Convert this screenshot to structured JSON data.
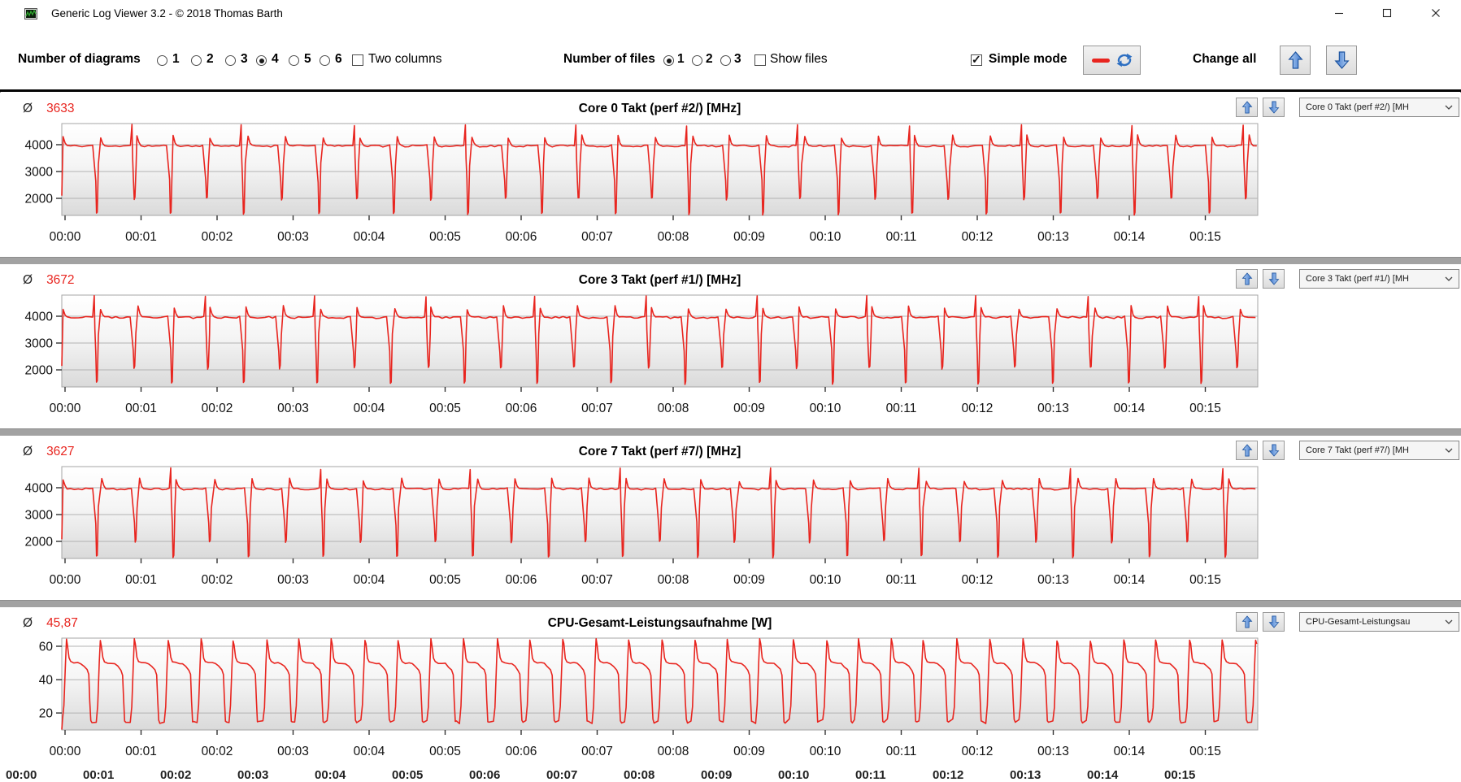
{
  "window": {
    "title": "Generic Log Viewer 3.2 - © 2018 Thomas Barth"
  },
  "toolbar": {
    "number_of_diagrams_label": "Number of diagrams",
    "diagram_count_options": [
      "1",
      "2",
      "3",
      "4",
      "5",
      "6"
    ],
    "diagram_count_selected": "4",
    "two_columns_label": "Two columns",
    "two_columns_checked": false,
    "number_of_files_label": "Number of files",
    "file_count_options": [
      "1",
      "2",
      "3"
    ],
    "file_count_selected": "1",
    "show_files_label": "Show files",
    "show_files_checked": false,
    "simple_mode_label": "Simple mode",
    "simple_mode_checked": true,
    "change_all_label": "Change all"
  },
  "chart_data": [
    {
      "type": "line",
      "title": "Core 0 Takt (perf #2/) [MHz]",
      "average_symbol": "Ø",
      "average_value": "3633",
      "dropdown_value": "Core 0 Takt (perf #2/) [MH",
      "line_color": "#e8251f",
      "x_tick_labels": [
        "00:00",
        "00:01",
        "00:02",
        "00:03",
        "00:04",
        "00:05",
        "00:06",
        "00:07",
        "00:08",
        "00:09",
        "00:10",
        "00:11",
        "00:12",
        "00:13",
        "00:14",
        "00:15"
      ],
      "y_ticks": [
        4000,
        3000,
        2000
      ],
      "y_tick_labels": [
        "4000",
        "3000",
        "2000"
      ],
      "ylim": [
        1364,
        4788
      ],
      "xlim_s": [
        0,
        944
      ],
      "waveform": {
        "seed": 11,
        "period_s": 29.4,
        "start": 2100,
        "start_dt": 1.0,
        "spike_every": 3,
        "spike_offset": 1,
        "dip_values": [
          1420,
          1975
        ],
        "segments": [
          {
            "dt": 0.0,
            "v": 4300,
            "j": 140
          },
          {
            "dt": 1.6,
            "v": 4060,
            "j": 50
          },
          {
            "dt": 3.2,
            "v": 3970,
            "j": 40
          },
          {
            "dt": 6.0,
            "v": 3950,
            "j": 70
          },
          {
            "dt": 9.0,
            "v": 3955,
            "j": 70
          },
          {
            "dt": 12.0,
            "v": 3950,
            "j": 70
          },
          {
            "dt": 15.0,
            "v": 3955,
            "j": 70
          },
          {
            "dt": 18.0,
            "v": 3950,
            "j": 70
          },
          {
            "dt": 21.0,
            "v": 3960,
            "j": 60
          },
          {
            "dt": 23.4,
            "v": 3980,
            "j": 40
          },
          {
            "dt": 24.6,
            "v": 4730,
            "j": 80,
            "spike_only": true
          },
          {
            "dt": 25.1,
            "v": 3500,
            "j": 120,
            "spike_only": true
          },
          {
            "dt": 25.8,
            "v": 2650,
            "j": 150
          },
          {
            "dt": 26.4,
            "v": 0,
            "j": 90,
            "dip_rel": true
          },
          {
            "dt": 27.0,
            "v": 70,
            "j": 60,
            "dip_rel": true
          },
          {
            "dt": 27.9,
            "v": 3250,
            "j": 150
          }
        ]
      }
    },
    {
      "type": "line",
      "title": "Core 3 Takt (perf #1/) [MHz]",
      "average_symbol": "Ø",
      "average_value": "3672",
      "dropdown_value": "Core 3 Takt (perf #1/) [MH",
      "line_color": "#e8251f",
      "x_tick_labels": [
        "00:00",
        "00:01",
        "00:02",
        "00:03",
        "00:04",
        "00:05",
        "00:06",
        "00:07",
        "00:08",
        "00:09",
        "00:10",
        "00:11",
        "00:12",
        "00:13",
        "00:14",
        "00:15"
      ],
      "y_ticks": [
        4000,
        3000,
        2000
      ],
      "y_tick_labels": [
        "4000",
        "3000",
        "2000"
      ],
      "ylim": [
        1364,
        4788
      ],
      "xlim_s": [
        0,
        944
      ],
      "waveform": {
        "seed": 23,
        "period_s": 29.1,
        "start": 2150,
        "start_dt": 1.0,
        "spike_every": 3,
        "spike_offset": 0,
        "dip_values": [
          1500,
          2070
        ],
        "segments": [
          {
            "dt": 0.0,
            "v": 4320,
            "j": 160
          },
          {
            "dt": 1.6,
            "v": 4060,
            "j": 50
          },
          {
            "dt": 3.2,
            "v": 3975,
            "j": 40
          },
          {
            "dt": 6.0,
            "v": 3955,
            "j": 70
          },
          {
            "dt": 9.0,
            "v": 3950,
            "j": 70
          },
          {
            "dt": 12.0,
            "v": 3960,
            "j": 70
          },
          {
            "dt": 15.0,
            "v": 3950,
            "j": 70
          },
          {
            "dt": 18.0,
            "v": 3955,
            "j": 70
          },
          {
            "dt": 21.0,
            "v": 3960,
            "j": 60
          },
          {
            "dt": 23.4,
            "v": 3985,
            "j": 40
          },
          {
            "dt": 24.6,
            "v": 4750,
            "j": 70,
            "spike_only": true
          },
          {
            "dt": 25.1,
            "v": 3550,
            "j": 120,
            "spike_only": true
          },
          {
            "dt": 25.8,
            "v": 2700,
            "j": 150
          },
          {
            "dt": 26.4,
            "v": 0,
            "j": 90,
            "dip_rel": true
          },
          {
            "dt": 27.0,
            "v": 70,
            "j": 60,
            "dip_rel": true
          },
          {
            "dt": 27.9,
            "v": 3300,
            "j": 150
          }
        ]
      }
    },
    {
      "type": "line",
      "title": "Core 7 Takt (perf #7/) [MHz]",
      "average_symbol": "Ø",
      "average_value": "3627",
      "dropdown_value": "Core 7 Takt (perf #7/) [MH",
      "line_color": "#e8251f",
      "x_tick_labels": [
        "00:00",
        "00:01",
        "00:02",
        "00:03",
        "00:04",
        "00:05",
        "00:06",
        "00:07",
        "00:08",
        "00:09",
        "00:10",
        "00:11",
        "00:12",
        "00:13",
        "00:14",
        "00:15"
      ],
      "y_ticks": [
        4000,
        3000,
        2000
      ],
      "y_tick_labels": [
        "4000",
        "3000",
        "2000"
      ],
      "ylim": [
        1364,
        4788
      ],
      "xlim_s": [
        0,
        944
      ],
      "waveform": {
        "seed": 37,
        "period_s": 29.7,
        "start": 2080,
        "start_dt": 1.0,
        "spike_every": 4,
        "spike_offset": 2,
        "dip_values": [
          1430,
          1990
        ],
        "segments": [
          {
            "dt": 0.0,
            "v": 4290,
            "j": 140
          },
          {
            "dt": 1.6,
            "v": 4055,
            "j": 50
          },
          {
            "dt": 3.2,
            "v": 3970,
            "j": 40
          },
          {
            "dt": 6.0,
            "v": 3950,
            "j": 70
          },
          {
            "dt": 9.0,
            "v": 3955,
            "j": 70
          },
          {
            "dt": 12.0,
            "v": 3950,
            "j": 70
          },
          {
            "dt": 15.0,
            "v": 3950,
            "j": 70
          },
          {
            "dt": 18.0,
            "v": 3955,
            "j": 70
          },
          {
            "dt": 21.0,
            "v": 3955,
            "j": 60
          },
          {
            "dt": 23.4,
            "v": 3980,
            "j": 40
          },
          {
            "dt": 24.6,
            "v": 4720,
            "j": 90,
            "spike_only": true
          },
          {
            "dt": 25.1,
            "v": 3500,
            "j": 120,
            "spike_only": true
          },
          {
            "dt": 25.8,
            "v": 2650,
            "j": 150
          },
          {
            "dt": 26.4,
            "v": 0,
            "j": 90,
            "dip_rel": true
          },
          {
            "dt": 27.0,
            "v": 70,
            "j": 60,
            "dip_rel": true
          },
          {
            "dt": 27.9,
            "v": 3250,
            "j": 150
          }
        ]
      }
    },
    {
      "type": "line",
      "title": "CPU-Gesamt-Leistungsaufnahme [W]",
      "average_symbol": "Ø",
      "average_value": "45,87",
      "dropdown_value": "CPU-Gesamt-Leistungsau",
      "line_color": "#e8251f",
      "x_tick_labels": [
        "00:00",
        "00:01",
        "00:02",
        "00:03",
        "00:04",
        "00:05",
        "00:06",
        "00:07",
        "00:08",
        "00:09",
        "00:10",
        "00:11",
        "00:12",
        "00:13",
        "00:14",
        "00:15"
      ],
      "y_ticks": [
        60,
        40,
        20
      ],
      "y_tick_labels": [
        "60",
        "40",
        "20"
      ],
      "ylim": [
        9.8,
        64.9
      ],
      "xlim_s": [
        0,
        944
      ],
      "waveform": {
        "seed": 5,
        "period_s": 25.9,
        "start": 10,
        "start_dt": 0.5,
        "spike_every": 0,
        "spike_offset": 0,
        "dip_values": [],
        "segments": [
          {
            "dt": 0.0,
            "v": 15,
            "j": 3
          },
          {
            "dt": 1.2,
            "v": 24,
            "j": 2
          },
          {
            "dt": 2.4,
            "v": 50,
            "j": 2
          },
          {
            "dt": 3.2,
            "v": 64,
            "j": 2
          },
          {
            "dt": 4.0,
            "v": 61,
            "j": 1.5
          },
          {
            "dt": 5.2,
            "v": 53,
            "j": 1
          },
          {
            "dt": 6.5,
            "v": 50.8,
            "j": 0.6
          },
          {
            "dt": 9.0,
            "v": 50,
            "j": 0.8
          },
          {
            "dt": 12.0,
            "v": 50,
            "j": 0.8
          },
          {
            "dt": 14.5,
            "v": 49.6,
            "j": 0.6
          },
          {
            "dt": 17.0,
            "v": 47.8,
            "j": 0.8
          },
          {
            "dt": 19.5,
            "v": 45.8,
            "j": 1
          },
          {
            "dt": 20.8,
            "v": 43,
            "j": 1
          },
          {
            "dt": 21.6,
            "v": 28,
            "j": 2
          },
          {
            "dt": 22.4,
            "v": 15.5,
            "j": 2
          },
          {
            "dt": 23.3,
            "v": 14.5,
            "j": 1.5
          }
        ]
      }
    }
  ],
  "bottom_strip": {
    "clipped_labels": [
      "00:00",
      "00:01",
      "00:02",
      "00:03",
      "00:04",
      "00:05",
      "00:06",
      "00:07",
      "00:08",
      "00:09",
      "00:10",
      "00:11",
      "00:12",
      "00:13",
      "00:14",
      "00:15"
    ]
  }
}
